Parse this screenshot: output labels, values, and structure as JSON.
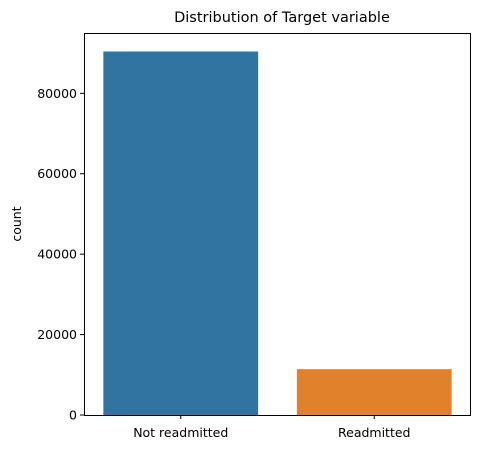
{
  "chart_data": {
    "type": "bar",
    "title": "Distribution of Target variable",
    "xlabel": "",
    "ylabel": "count",
    "categories": [
      "Not readmitted",
      "Readmitted"
    ],
    "values": [
      90400,
      11400
    ],
    "colors": [
      "#3274a1",
      "#e1812c"
    ],
    "ylim": [
      0,
      95000
    ],
    "yticks": [
      0,
      20000,
      40000,
      60000,
      80000
    ],
    "ytick_labels": [
      "0",
      "20000",
      "40000",
      "60000",
      "80000"
    ],
    "grid": false,
    "legend": "none"
  }
}
